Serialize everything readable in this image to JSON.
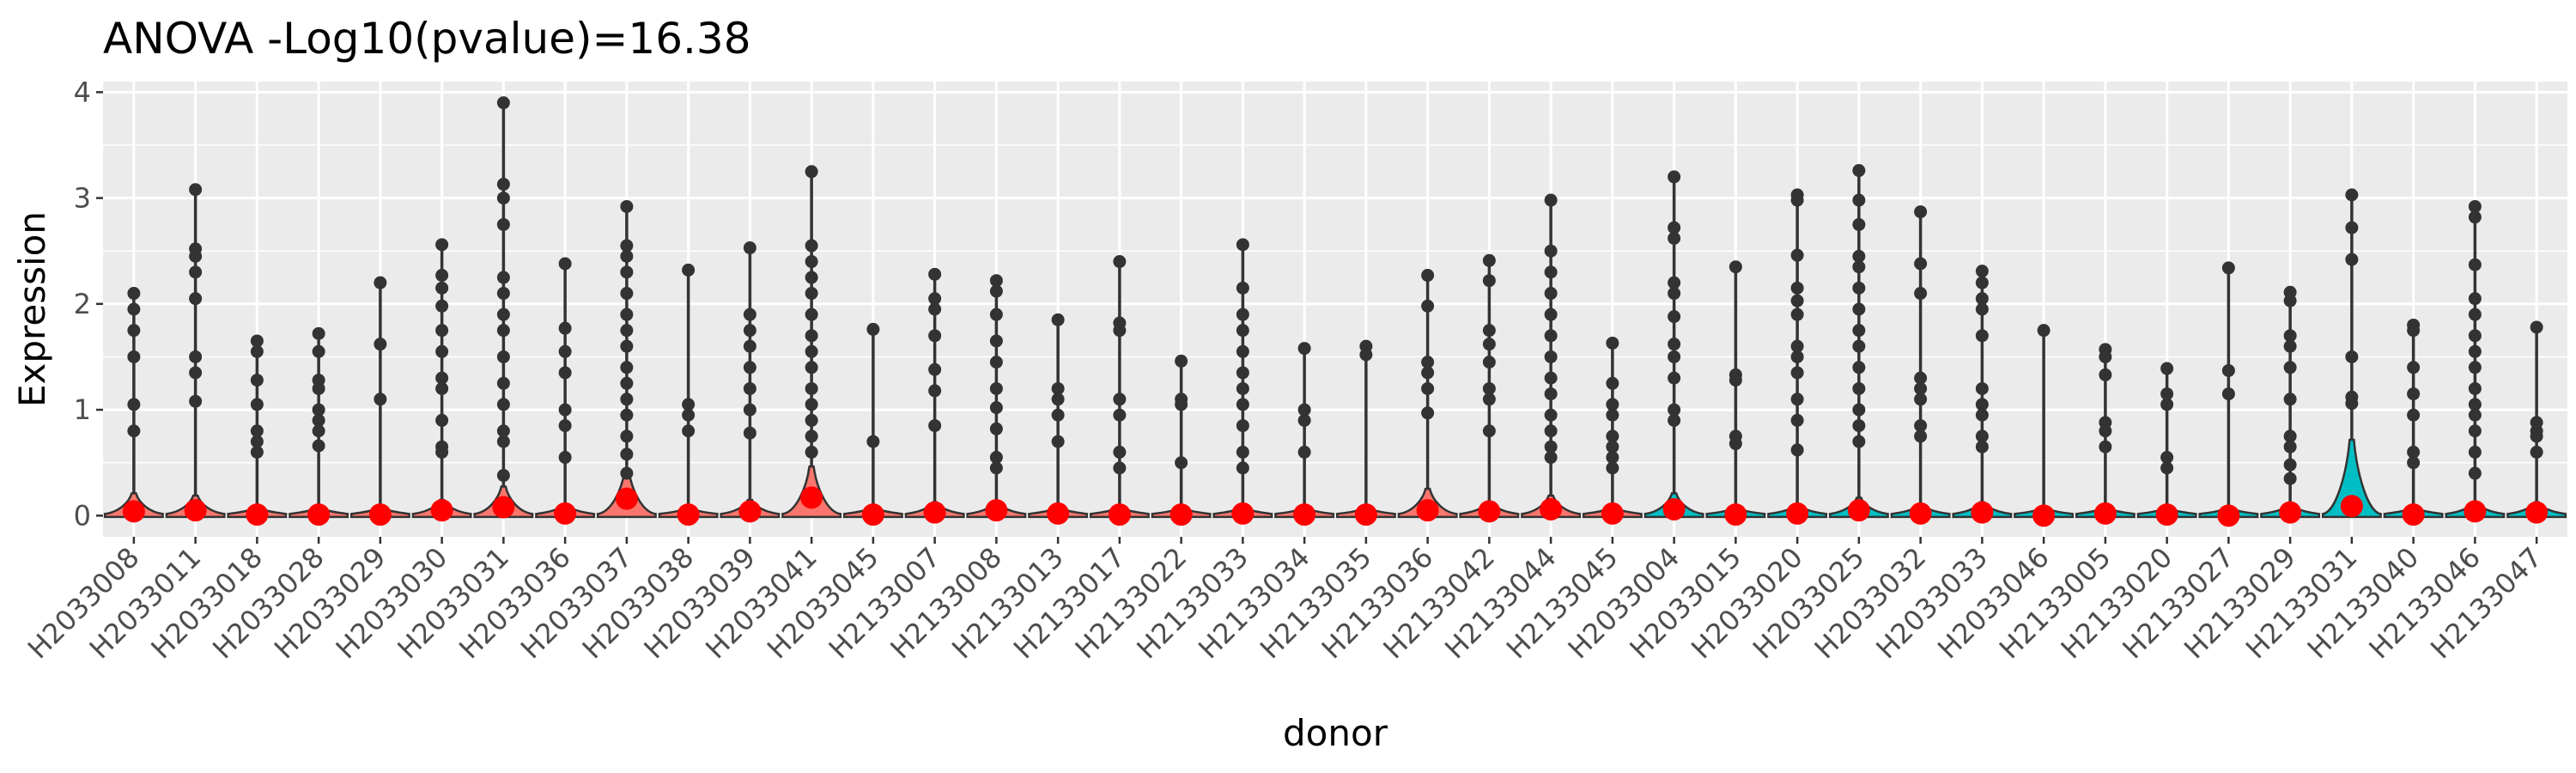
{
  "chart_data": {
    "type": "violin",
    "title": "ANOVA -Log10(pvalue)=16.38",
    "xlabel": "donor",
    "ylabel": "Expression",
    "ylim": [
      -0.2,
      4.1
    ],
    "yticks": [
      0,
      1,
      2,
      3,
      4
    ],
    "grid": true,
    "legend": "none",
    "colors": {
      "panel": "#ebebeb",
      "grid": "#ffffff",
      "outline": "#333333",
      "violin_fill": "#f8766d",
      "violin_fill_alt": "#00bfc4",
      "points": "#333333",
      "mean_marker": "#ff0000"
    },
    "categories": [
      "H2033008",
      "H2033011",
      "H2033018",
      "H2033028",
      "H2033029",
      "H2033030",
      "H2033031",
      "H2033036",
      "H2033037",
      "H2033038",
      "H2033039",
      "H2033041",
      "H2033045",
      "H2133007",
      "H2133008",
      "H2133013",
      "H2133017",
      "H2133022",
      "H2133033",
      "H2133034",
      "H2133035",
      "H2133036",
      "H2133042",
      "H2133044",
      "H2133045",
      "H2033004",
      "H2033015",
      "H2033020",
      "H2033025",
      "H2033032",
      "H2033033",
      "H2033046",
      "H2133005",
      "H2133020",
      "H2133027",
      "H2133029",
      "H2133031",
      "H2133040",
      "H2133046",
      "H2133047"
    ],
    "fill_group": [
      0,
      0,
      0,
      0,
      0,
      0,
      0,
      0,
      0,
      0,
      0,
      0,
      0,
      0,
      0,
      0,
      0,
      0,
      0,
      0,
      0,
      0,
      0,
      0,
      0,
      1,
      1,
      1,
      1,
      1,
      1,
      1,
      1,
      1,
      1,
      1,
      1,
      1,
      1,
      1
    ],
    "max_values": [
      2.1,
      3.08,
      1.65,
      1.72,
      2.2,
      2.56,
      3.9,
      2.38,
      2.92,
      2.32,
      2.53,
      3.25,
      1.76,
      2.28,
      2.22,
      1.85,
      2.4,
      1.46,
      2.56,
      1.58,
      1.6,
      2.27,
      2.41,
      2.98,
      1.63,
      3.2,
      2.35,
      3.03,
      3.26,
      2.87,
      2.31,
      1.75,
      1.57,
      1.39,
      2.34,
      2.11,
      3.03,
      1.8,
      2.92,
      1.78
    ],
    "means": [
      0.04,
      0.05,
      0.01,
      0.01,
      0.01,
      0.05,
      0.08,
      0.02,
      0.16,
      0.01,
      0.04,
      0.17,
      0.01,
      0.03,
      0.05,
      0.02,
      0.01,
      0.01,
      0.02,
      0.01,
      0.01,
      0.05,
      0.04,
      0.06,
      0.02,
      0.06,
      0.01,
      0.02,
      0.05,
      0.02,
      0.03,
      0.0,
      0.02,
      0.01,
      0.0,
      0.03,
      0.09,
      0.01,
      0.04,
      0.03
    ],
    "density_peaks": [
      0.1,
      0.09,
      0.04,
      0.04,
      0.04,
      0.07,
      0.13,
      0.05,
      0.2,
      0.03,
      0.07,
      0.22,
      0.04,
      0.06,
      0.06,
      0.04,
      0.04,
      0.03,
      0.04,
      0.03,
      0.02,
      0.12,
      0.06,
      0.09,
      0.04,
      0.1,
      0.03,
      0.05,
      0.08,
      0.05,
      0.06,
      0.02,
      0.04,
      0.03,
      0.02,
      0.05,
      0.34,
      0.04,
      0.06,
      0.06
    ],
    "points": [
      [
        2.1,
        1.95,
        1.75,
        1.5,
        1.05,
        0.8
      ],
      [
        3.08,
        2.52,
        2.45,
        2.3,
        2.05,
        1.5,
        1.35,
        1.08
      ],
      [
        1.65,
        1.55,
        1.28,
        1.05,
        0.8,
        0.7,
        0.6
      ],
      [
        1.72,
        1.55,
        1.28,
        1.2,
        1.0,
        0.9,
        0.8,
        0.66
      ],
      [
        2.2,
        1.62,
        1.1
      ],
      [
        2.56,
        2.27,
        2.15,
        1.98,
        1.75,
        1.55,
        1.3,
        1.2,
        0.9,
        0.65,
        0.6
      ],
      [
        3.9,
        3.13,
        3.0,
        2.75,
        2.25,
        2.1,
        1.9,
        1.75,
        1.5,
        1.25,
        1.05,
        0.8,
        0.7,
        0.38
      ],
      [
        2.38,
        1.77,
        1.55,
        1.35,
        1.0,
        0.85,
        0.55
      ],
      [
        2.92,
        2.55,
        2.45,
        2.3,
        2.1,
        1.9,
        1.75,
        1.6,
        1.4,
        1.25,
        1.1,
        0.95,
        0.75,
        0.58,
        0.4
      ],
      [
        2.32,
        1.05,
        0.95,
        0.8
      ],
      [
        2.53,
        1.9,
        1.75,
        1.6,
        1.4,
        1.2,
        1.0,
        0.78
      ],
      [
        3.25,
        2.55,
        2.4,
        2.25,
        2.1,
        1.9,
        1.7,
        1.55,
        1.4,
        1.2,
        1.05,
        0.9,
        0.75,
        0.6
      ],
      [
        1.76,
        0.7
      ],
      [
        2.28,
        2.05,
        1.95,
        1.7,
        1.38,
        1.18,
        0.85
      ],
      [
        2.22,
        2.12,
        1.9,
        1.65,
        1.45,
        1.2,
        1.02,
        0.82,
        0.55,
        0.45
      ],
      [
        1.85,
        1.2,
        1.1,
        0.95,
        0.7
      ],
      [
        2.4,
        1.82,
        1.75,
        1.1,
        0.95,
        0.6,
        0.45
      ],
      [
        1.46,
        1.1,
        1.05,
        0.5
      ],
      [
        2.56,
        2.15,
        1.9,
        1.75,
        1.55,
        1.35,
        1.2,
        1.05,
        0.85,
        0.6,
        0.45
      ],
      [
        1.58,
        1.0,
        0.9,
        0.6
      ],
      [
        1.6,
        1.52
      ],
      [
        2.27,
        1.98,
        1.45,
        1.35,
        1.2,
        0.97
      ],
      [
        2.41,
        2.22,
        1.75,
        1.62,
        1.45,
        1.2,
        1.1,
        0.8
      ],
      [
        2.98,
        2.5,
        2.3,
        2.1,
        1.9,
        1.7,
        1.5,
        1.3,
        1.15,
        0.95,
        0.8,
        0.65,
        0.55
      ],
      [
        1.63,
        1.25,
        1.05,
        0.95,
        0.75,
        0.65,
        0.55,
        0.45
      ],
      [
        3.2,
        2.72,
        2.62,
        2.2,
        2.1,
        1.88,
        1.62,
        1.5,
        1.3,
        1.0,
        0.9
      ],
      [
        2.35,
        1.33,
        1.28,
        0.75,
        0.68
      ],
      [
        3.03,
        2.98,
        2.46,
        2.15,
        2.03,
        1.9,
        1.6,
        1.5,
        1.35,
        1.1,
        0.9,
        0.62
      ],
      [
        3.26,
        2.98,
        2.75,
        2.45,
        2.35,
        2.15,
        1.95,
        1.75,
        1.6,
        1.4,
        1.2,
        1.0,
        0.85,
        0.7
      ],
      [
        2.87,
        2.38,
        2.1,
        1.3,
        1.2,
        1.1,
        0.85,
        0.75
      ],
      [
        2.31,
        2.2,
        2.05,
        1.95,
        1.7,
        1.2,
        1.05,
        0.95,
        0.75,
        0.65
      ],
      [
        1.75
      ],
      [
        1.57,
        1.5,
        1.33,
        0.88,
        0.8,
        0.65
      ],
      [
        1.39,
        1.15,
        1.05,
        0.55,
        0.45
      ],
      [
        2.34,
        1.37,
        1.15
      ],
      [
        2.11,
        2.03,
        1.7,
        1.6,
        1.4,
        1.1,
        0.75,
        0.65,
        0.48,
        0.35
      ],
      [
        3.03,
        2.72,
        2.42,
        1.5,
        1.12,
        1.06
      ],
      [
        1.8,
        1.75,
        1.4,
        1.15,
        0.95,
        0.6,
        0.5
      ],
      [
        2.92,
        2.82,
        2.37,
        2.05,
        1.9,
        1.7,
        1.55,
        1.4,
        1.2,
        1.05,
        0.95,
        0.8,
        0.6,
        0.4
      ],
      [
        1.78,
        0.88,
        0.8,
        0.75,
        0.6
      ]
    ]
  }
}
